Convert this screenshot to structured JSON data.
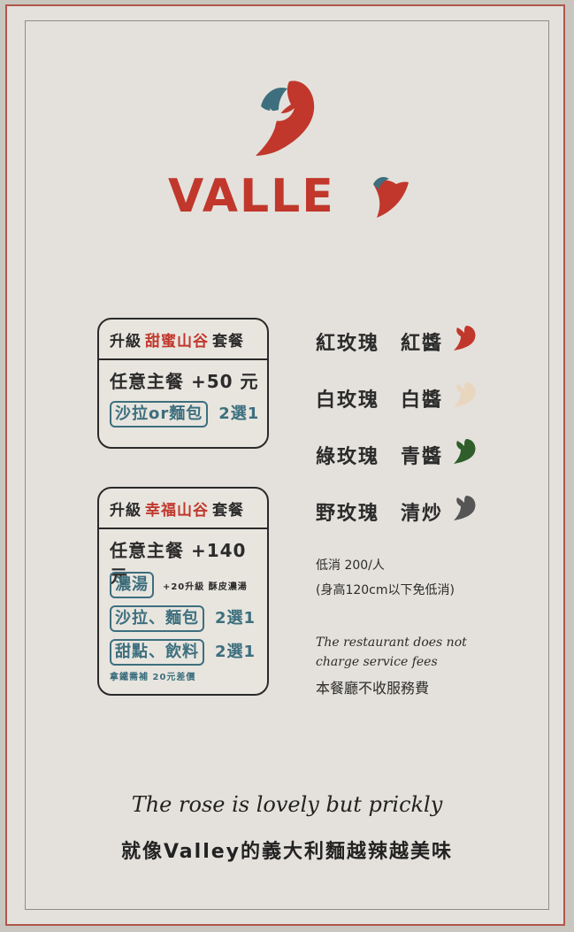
{
  "brand": {
    "name": "VALLE"
  },
  "set1": {
    "prefix": "升級",
    "name": "甜蜜山谷",
    "suffix": "套餐",
    "main": "任意主餐 +50 元",
    "choice_pill": "沙拉or麵包",
    "choice_note": "2選1"
  },
  "set2": {
    "prefix": "升級",
    "name": "幸福山谷",
    "suffix": "套餐",
    "main": "任意主餐 +140 元",
    "soup_pill": "濃湯",
    "soup_note": "+20升級 酥皮濃湯",
    "choice1_pill": "沙拉、麵包",
    "choice1_note": "2選1",
    "choice2_pill": "甜點、飲料",
    "choice2_note": "2選1",
    "latte_note": "拿鐵需補 20元差價"
  },
  "sauces": [
    {
      "rose": "紅玫瑰",
      "sauce": "紅醬",
      "color": "#c1372c",
      "icon": "red-rose-icon"
    },
    {
      "rose": "白玫瑰",
      "sauce": "白醬",
      "color": "#e9d6bf",
      "icon": "white-rose-icon"
    },
    {
      "rose": "綠玫瑰",
      "sauce": "青醬",
      "color": "#2f5e2b",
      "icon": "green-rose-icon"
    },
    {
      "rose": "野玫瑰",
      "sauce": "清炒",
      "color": "#555555",
      "icon": "grey-rose-icon"
    }
  ],
  "notes": {
    "min_charge": "低消 200/人",
    "height_rule": "(身高120cm以下免低消)",
    "service_en_1": "The restaurant does not",
    "service_en_2": "charge service fees",
    "service_zh": "本餐廳不收服務費"
  },
  "tagline": {
    "english": "The rose is lovely but prickly",
    "chinese": "就像Valley的義大利麵越辣越美味"
  },
  "colors": {
    "accent": "#c1372c",
    "teal": "#3d6f7e",
    "background": "#e4e1dc"
  }
}
